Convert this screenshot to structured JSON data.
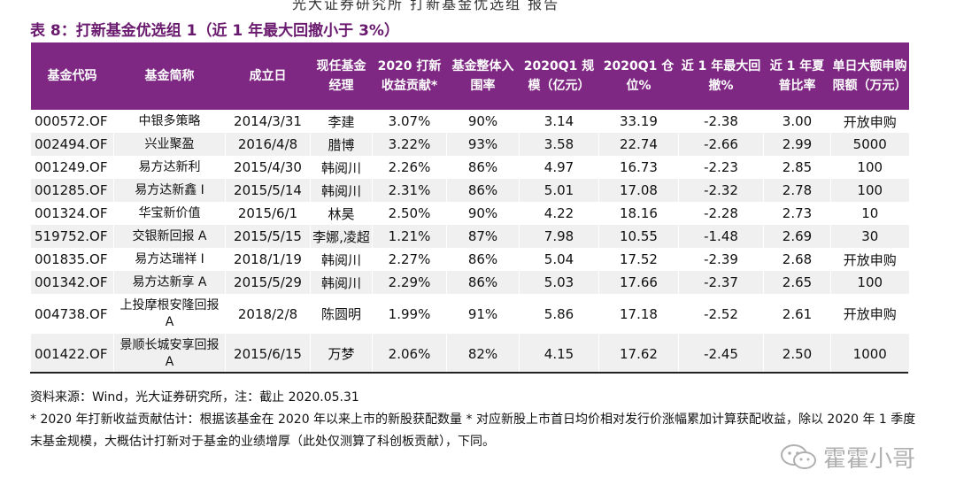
{
  "cut_header_text": "光大证券研究所 打新基金优选组 报告",
  "title": "表 8：打新基金优选组 1（近 1 年最大回撤小于 3%）",
  "table": {
    "headers": [
      "基金代码",
      "基金简称",
      "成立日",
      "现任基金经理",
      "2020 打新收益贡献*",
      "基金整体入围率",
      "2020Q1 规模（亿元）",
      "2020Q1 仓位%",
      "近 1 年最大回撤%",
      "近 1 年夏普比率",
      "单日大额申购限额（万元）"
    ],
    "rows": [
      [
        "000572.OF",
        "中银多策略",
        "2014/3/31",
        "李建",
        "3.07%",
        "90%",
        "3.14",
        "33.19",
        "-2.38",
        "3.00",
        "开放申购"
      ],
      [
        "002494.OF",
        "兴业聚盈",
        "2016/4/8",
        "腊博",
        "3.22%",
        "93%",
        "3.58",
        "22.74",
        "-2.66",
        "2.99",
        "5000"
      ],
      [
        "001249.OF",
        "易方达新利",
        "2015/4/30",
        "韩阅川",
        "2.26%",
        "86%",
        "4.97",
        "16.73",
        "-2.23",
        "2.85",
        "100"
      ],
      [
        "001285.OF",
        "易方达新鑫 I",
        "2015/5/14",
        "韩阅川",
        "2.31%",
        "86%",
        "5.01",
        "17.08",
        "-2.32",
        "2.78",
        "100"
      ],
      [
        "001324.OF",
        "华宝新价值",
        "2015/6/1",
        "林昊",
        "2.50%",
        "90%",
        "4.22",
        "18.16",
        "-2.28",
        "2.73",
        "10"
      ],
      [
        "519752.OF",
        "交银新回报 A",
        "2015/5/15",
        "李娜,凌超",
        "1.21%",
        "87%",
        "7.98",
        "10.55",
        "-1.48",
        "2.69",
        "30"
      ],
      [
        "001835.OF",
        "易方达瑞祥 I",
        "2018/1/19",
        "韩阅川",
        "2.27%",
        "86%",
        "5.04",
        "17.52",
        "-2.39",
        "2.68",
        "开放申购"
      ],
      [
        "001342.OF",
        "易方达新享 A",
        "2015/5/29",
        "韩阅川",
        "2.29%",
        "86%",
        "5.03",
        "17.66",
        "-2.37",
        "2.65",
        "100"
      ],
      [
        "004738.OF",
        "上投摩根安隆回报 A",
        "2018/2/8",
        "陈圆明",
        "1.99%",
        "91%",
        "5.86",
        "17.18",
        "-2.52",
        "2.61",
        "开放申购"
      ],
      [
        "001422.OF",
        "景顺长城安享回报 A",
        "2015/6/15",
        "万梦",
        "2.06%",
        "82%",
        "4.15",
        "17.62",
        "-2.45",
        "2.50",
        "1000"
      ]
    ]
  },
  "source": "资料来源：Wind，光大证券研究所，注：截止 2020.05.31",
  "note": "* 2020 年打新收益贡献估计：根据该基金在 2020 年以来上市的新股获配数量 * 对应新股上市首日均价相对发行价涨幅累加计算获配收益，除以 2020 年 1 季度末基金规模，大概估计打新对于基金的业绩增厚（此处仅测算了科创板贡献），下同。",
  "watermark": "霍霍小哥",
  "colors": {
    "header_bg": "#7e2883",
    "title": "#6a1a6e",
    "row_alt": "#f0f0f0"
  }
}
